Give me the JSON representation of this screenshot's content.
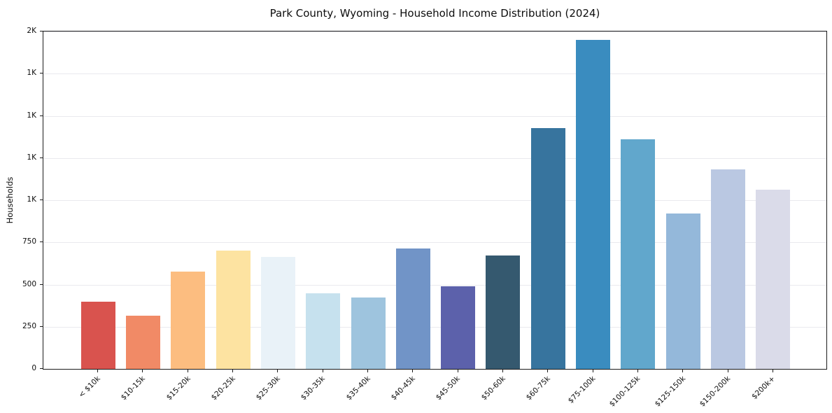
{
  "chart_data": {
    "type": "bar",
    "title": "Park County, Wyoming - Household Income Distribution (2024)",
    "xlabel": "",
    "ylabel": "Households",
    "ylim": [
      0,
      2000
    ],
    "ytick_step": 250,
    "ytick_labels": [
      "0",
      "250",
      "500",
      "750",
      "1K",
      "1K",
      "1K",
      "1K",
      "2K"
    ],
    "grid": "horizontal-only",
    "legend": "none",
    "categories": [
      "< $10k",
      "$10-15k",
      "$15-20k",
      "$20-25k",
      "$25-30k",
      "$30-35k",
      "$35-40k",
      "$40-45k",
      "$45-50k",
      "$50-60k",
      "$60-75k",
      "$75-100k",
      "$100-125k",
      "$125-150k",
      "$150-200k",
      "$200k+"
    ],
    "values": [
      400,
      315,
      575,
      700,
      665,
      450,
      425,
      715,
      488,
      672,
      1427,
      1950,
      1360,
      923,
      1183,
      1063
    ],
    "bar_colors": [
      "#d9534e",
      "#f18a66",
      "#fcbd80",
      "#fde3a1",
      "#e9f2f8",
      "#c6e1ee",
      "#9ec4de",
      "#7194c7",
      "#5c61ab",
      "#35596f",
      "#37749e",
      "#3a8cbf",
      "#61a7cc",
      "#94b8da",
      "#bac8e2",
      "#dadbe9"
    ],
    "colors": {
      "background": "#ffffff",
      "spine": "#1c1c1c",
      "gridline": "#e9e9ee",
      "text": "#0d0d0d"
    }
  }
}
